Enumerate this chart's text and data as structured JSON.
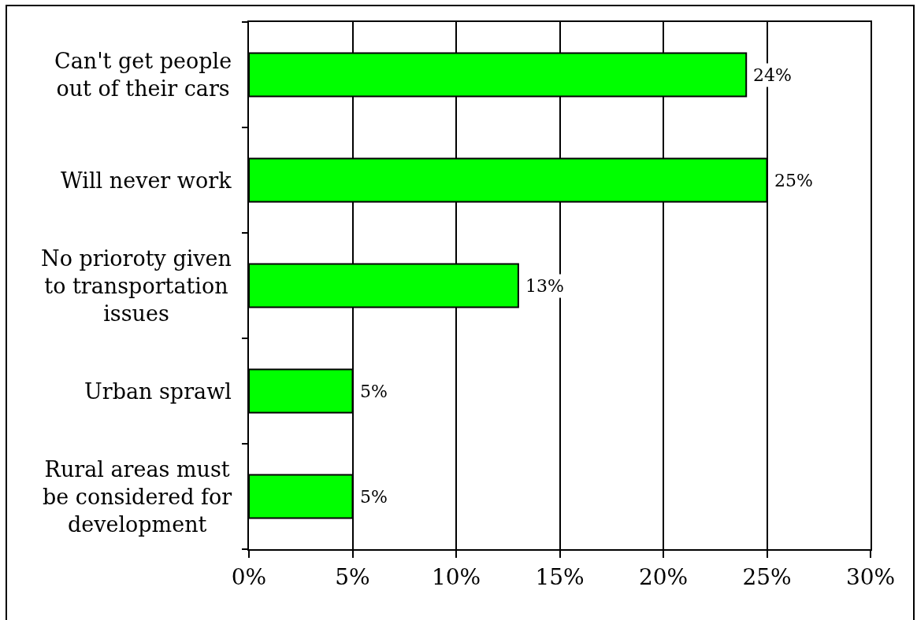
{
  "chart_data": {
    "type": "bar",
    "orientation": "horizontal",
    "categories": [
      "Can't get people out of their cars",
      "Will never work",
      "No prioroty given to transportation issues",
      "Urban sprawl",
      "Rural areas must be considered for development"
    ],
    "values": [
      24,
      25,
      13,
      5,
      5
    ],
    "color": "#00ff00",
    "value_labels": [
      "24%",
      "25%",
      "13%",
      "5%",
      "5%"
    ],
    "xlim": [
      0,
      30
    ],
    "xticks": [
      {
        "value": 0,
        "label": "0%"
      },
      {
        "value": 5,
        "label": "5%"
      },
      {
        "value": 10,
        "label": "10%"
      },
      {
        "value": 15,
        "label": "15%"
      },
      {
        "value": 20,
        "label": "20%"
      },
      {
        "value": 25,
        "label": "25%"
      },
      {
        "value": 30,
        "label": "30%"
      }
    ],
    "grid": "x"
  }
}
